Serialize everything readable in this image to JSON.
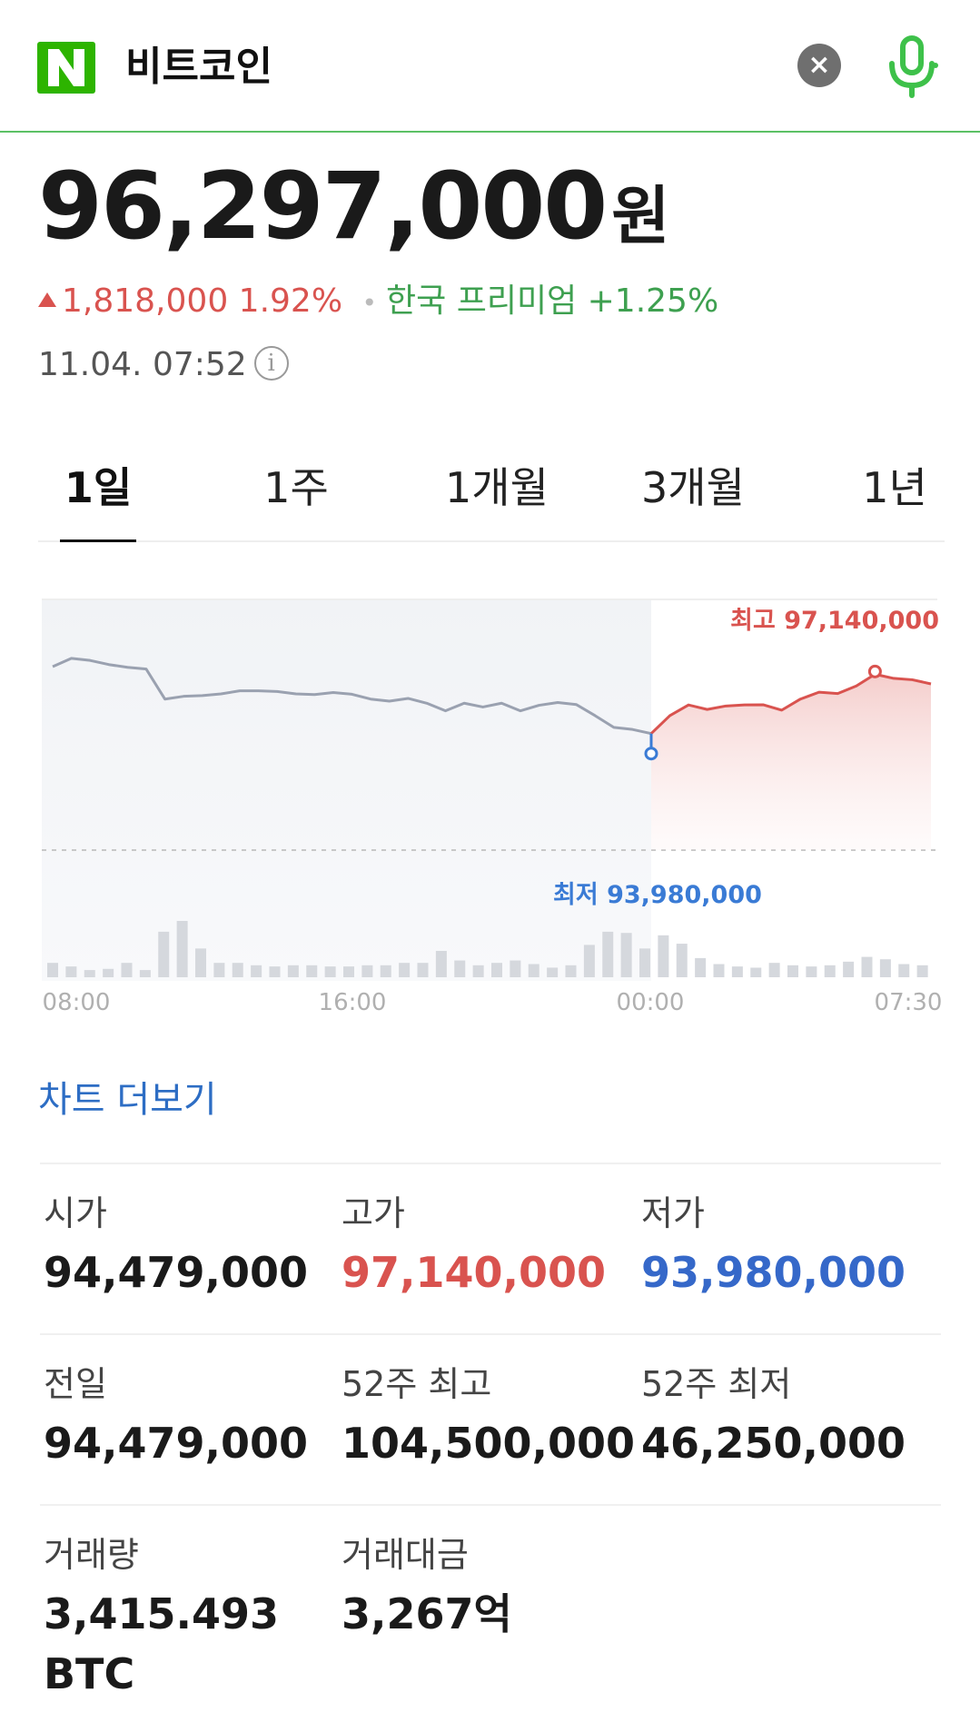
{
  "search": {
    "query": "비트코인",
    "clear_label": "×"
  },
  "price": {
    "value": "96,297,000",
    "unit": "원",
    "change": "1,818,000",
    "change_pct": "1.92%",
    "premium_label": "한국 프리미엄",
    "premium_value": "+1.25%",
    "timestamp": "11.04. 07:52",
    "info_glyph": "i"
  },
  "tabs": [
    {
      "label": "1일",
      "active": true
    },
    {
      "label": "1주",
      "active": false
    },
    {
      "label": "1개월",
      "active": false
    },
    {
      "label": "3개월",
      "active": false
    },
    {
      "label": "1년",
      "active": false
    }
  ],
  "chart_data": {
    "type": "line",
    "x_ticks": [
      "08:00",
      "16:00",
      "00:00",
      "07:30"
    ],
    "high_label": "최고 97,140,000",
    "low_label": "최저 93,980,000",
    "high": 97140000,
    "low": 93980000,
    "baseline": 94479000,
    "series": [
      {
        "values": [
          96950000,
          97070000,
          97040000,
          96980000,
          96940000,
          96915000,
          96480000,
          96520000,
          96530000,
          96555000,
          96600000,
          96600000,
          96590000,
          96555000,
          96545000,
          96575000,
          96550000,
          96480000,
          96450000,
          96490000,
          96420000,
          96310000,
          96420000,
          96365000,
          96420000,
          96310000,
          96390000,
          96430000,
          96400000,
          96240000,
          96070000,
          96040000,
          95980000
        ]
      },
      {
        "values": [
          95980000,
          96240000,
          96395000,
          96330000,
          96380000,
          96395000,
          96398000,
          96320000,
          96480000,
          96580000,
          96560000,
          96670000,
          96840000,
          96780000,
          96760000,
          96700000
        ]
      }
    ],
    "volume": [
      12,
      9,
      6,
      7,
      12,
      6,
      38,
      47,
      24,
      12,
      12,
      10,
      9,
      10,
      10,
      9,
      9,
      10,
      10,
      12,
      12,
      22,
      14,
      10,
      12,
      14,
      11,
      8,
      10,
      27,
      38,
      37,
      24,
      35,
      28,
      16,
      11,
      9,
      8,
      12,
      10,
      9,
      10,
      13,
      17,
      15,
      11,
      10
    ]
  },
  "more_link": "차트 더보기",
  "stats": [
    [
      {
        "label": "시가",
        "value": "94,479,000",
        "tone": ""
      },
      {
        "label": "고가",
        "value": "97,140,000",
        "tone": "red"
      },
      {
        "label": "저가",
        "value": "93,980,000",
        "tone": "blue"
      }
    ],
    [
      {
        "label": "전일",
        "value": "94,479,000",
        "tone": ""
      },
      {
        "label": "52주 최고",
        "value": "104,500,000",
        "tone": ""
      },
      {
        "label": "52주 최저",
        "value": "46,250,000",
        "tone": ""
      }
    ],
    [
      {
        "label": "거래량",
        "value": "3,415.493 BTC",
        "tone": ""
      },
      {
        "label": "거래대금",
        "value": "3,267억",
        "tone": ""
      }
    ]
  ],
  "colors": {
    "brand_green": "#2db400",
    "up_red": "#d9534f",
    "down_blue": "#3568c9",
    "premium_green": "#3ea050",
    "link_blue": "#2d6dc4"
  }
}
